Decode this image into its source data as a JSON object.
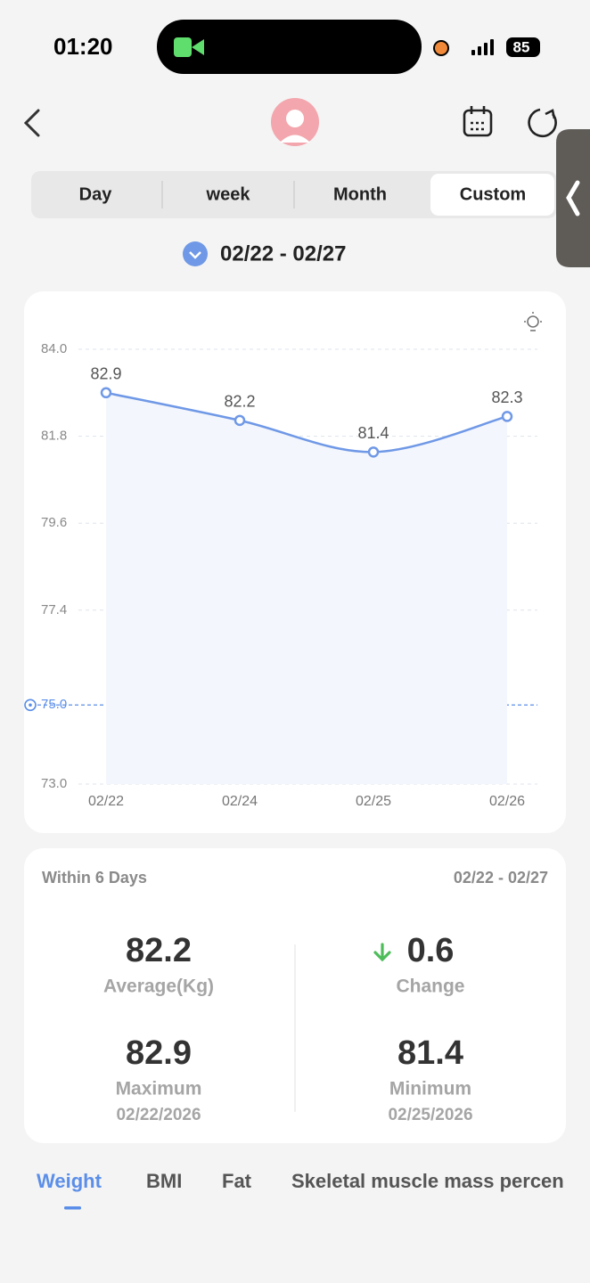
{
  "status_bar": {
    "time": "01:20",
    "battery": "85"
  },
  "tabs": [
    "Day",
    "week",
    "Month",
    "Custom"
  ],
  "date_range": "02/22 - 02/27",
  "chart_data": {
    "type": "line",
    "categories": [
      "02/22",
      "02/24",
      "02/25",
      "02/26"
    ],
    "values": [
      82.9,
      82.2,
      81.4,
      82.3
    ],
    "color": "#6f98e6",
    "ylim": [
      73,
      84
    ],
    "yticks": [
      {
        "value": 73,
        "label": "73.0"
      },
      {
        "value": 77.4,
        "label": "77.4"
      },
      {
        "value": 79.6,
        "label": "79.6"
      },
      {
        "value": 81.8,
        "label": "81.8"
      },
      {
        "value": 84,
        "label": "84.0"
      }
    ],
    "target": {
      "value": 75,
      "label": "75.0"
    },
    "grid": true
  },
  "summary": {
    "title": "Within 6 Days",
    "range": "02/22 - 02/27",
    "average": {
      "value": 82.2,
      "label": "Average(Kg)"
    },
    "change": {
      "value": 0.6,
      "label": "Change"
    },
    "maximum": {
      "value": 82.9,
      "label": "Maximum",
      "date": "02/22/2026"
    },
    "minimum": {
      "value": 81.4,
      "label": "Minimum",
      "date": "02/25/2026"
    }
  },
  "metric_tabs": [
    "Weight",
    "BMI",
    "Fat",
    "Skeletal muscle mass percen"
  ]
}
